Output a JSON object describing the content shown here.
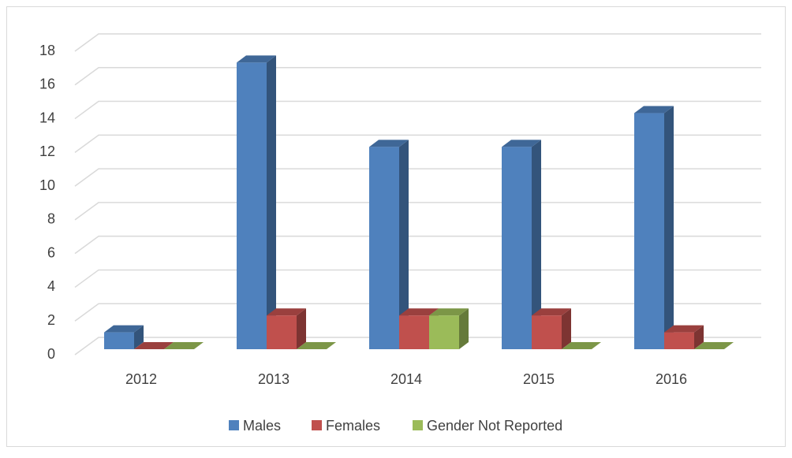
{
  "chart_data": {
    "type": "bar3d",
    "categories": [
      "2012",
      "2013",
      "2014",
      "2015",
      "2016"
    ],
    "series": [
      {
        "name": "Males",
        "color": "#4f81bd",
        "values": [
          1,
          17,
          12,
          12,
          14
        ]
      },
      {
        "name": "Females",
        "color": "#c0504d",
        "values": [
          0,
          2,
          2,
          2,
          1
        ]
      },
      {
        "name": "Gender Not Reported",
        "color": "#9bbb59",
        "values": [
          0,
          0,
          2,
          0,
          0
        ]
      }
    ],
    "ylim": [
      0,
      18
    ],
    "yticks": [
      0,
      2,
      4,
      6,
      8,
      10,
      12,
      14,
      16,
      18
    ],
    "grid": true,
    "legend": "bottom"
  }
}
